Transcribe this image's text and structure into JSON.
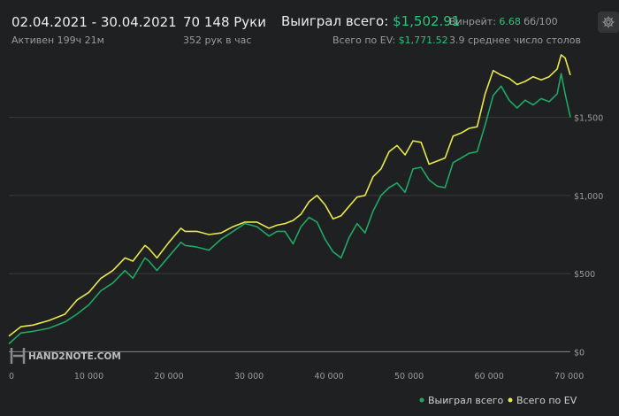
{
  "header": {
    "date_range": "02.04.2021 - 30.04.2021",
    "active": "Активен 199ч 21м",
    "hands": "70 148 Руки",
    "hands_per_hour": "352 рук в час",
    "won_label": "Выиграл всего:",
    "won_value": "$1,502.91",
    "ev_label": "Всего по EV:",
    "ev_value": "$1,771.52",
    "winrate_label": "Винрейт:",
    "winrate_value": "6.68",
    "winrate_unit": "бб/100",
    "tables": "3.9 среднее число столов"
  },
  "watermark": "HAND2NOTE.COM",
  "colors": {
    "won": "#1fa866",
    "ev": "#e8e84a",
    "accent_green": "#2ec27e",
    "background": "#1f2021"
  },
  "icons": {
    "settings": "gear-icon",
    "logo": "hand2note-logo-icon"
  },
  "chart_data": {
    "type": "line",
    "xlim": [
      0,
      70148
    ],
    "ylim": [
      -100,
      1900
    ],
    "x_ticks": [
      0,
      10000,
      20000,
      30000,
      40000,
      50000,
      60000,
      70000
    ],
    "x_tick_labels": [
      "0",
      "10 000",
      "20 000",
      "30 000",
      "40 000",
      "50 000",
      "60 000",
      "70 000"
    ],
    "y_ticks": [
      0,
      500,
      1000,
      1500
    ],
    "y_tick_labels": [
      "$0",
      "$500",
      "$1,000",
      "$1,500"
    ],
    "grid": true,
    "legend_position": "bottom-right",
    "legend": [
      "Выиграл всего",
      "Всего по EV"
    ],
    "series": [
      {
        "name": "Выиграл всего",
        "color": "#1fa866",
        "x": [
          0,
          1500,
          3000,
          5000,
          7000,
          8500,
          10000,
          11500,
          13000,
          14500,
          15500,
          17000,
          17500,
          18500,
          20000,
          21500,
          22000,
          23500,
          25000,
          26500,
          28000,
          29500,
          31000,
          32500,
          33500,
          34500,
          35500,
          36500,
          37500,
          38500,
          39500,
          40500,
          41500,
          42500,
          43500,
          44500,
          45500,
          46500,
          47500,
          48500,
          49500,
          50500,
          51500,
          52500,
          53500,
          54500,
          55500,
          56500,
          57500,
          58500,
          59500,
          60500,
          61500,
          62500,
          63500,
          64500,
          65500,
          66500,
          67500,
          68500,
          69000,
          69500,
          70148
        ],
        "y": [
          50,
          120,
          130,
          150,
          190,
          240,
          300,
          390,
          440,
          520,
          470,
          600,
          580,
          520,
          610,
          700,
          680,
          670,
          650,
          720,
          770,
          820,
          800,
          740,
          770,
          770,
          690,
          800,
          860,
          830,
          720,
          640,
          600,
          730,
          820,
          760,
          900,
          1000,
          1050,
          1080,
          1020,
          1170,
          1180,
          1100,
          1060,
          1050,
          1210,
          1240,
          1270,
          1280,
          1450,
          1640,
          1700,
          1610,
          1560,
          1610,
          1580,
          1620,
          1600,
          1650,
          1780,
          1650,
          1500
        ]
      },
      {
        "name": "Всего по EV",
        "color": "#e8e84a",
        "x": [
          0,
          1500,
          3000,
          5000,
          7000,
          8500,
          10000,
          11500,
          13000,
          14500,
          15500,
          17000,
          17500,
          18500,
          20000,
          21500,
          22000,
          23500,
          25000,
          26500,
          28000,
          29500,
          31000,
          32500,
          33500,
          34500,
          35500,
          36500,
          37500,
          38500,
          39500,
          40500,
          41500,
          42500,
          43500,
          44500,
          45500,
          46500,
          47500,
          48500,
          49500,
          50500,
          51500,
          52500,
          53500,
          54500,
          55500,
          56500,
          57500,
          58500,
          59500,
          60500,
          61500,
          62500,
          63500,
          64500,
          65500,
          66500,
          67500,
          68500,
          69000,
          69500,
          70148
        ],
        "y": [
          100,
          160,
          170,
          200,
          240,
          330,
          380,
          470,
          520,
          600,
          580,
          680,
          660,
          600,
          700,
          790,
          770,
          770,
          750,
          760,
          800,
          830,
          830,
          790,
          810,
          820,
          840,
          880,
          960,
          1000,
          940,
          850,
          870,
          930,
          990,
          1000,
          1120,
          1170,
          1280,
          1320,
          1260,
          1350,
          1340,
          1200,
          1220,
          1240,
          1380,
          1400,
          1430,
          1440,
          1650,
          1800,
          1770,
          1750,
          1710,
          1730,
          1760,
          1740,
          1760,
          1810,
          1900,
          1880,
          1770
        ]
      }
    ]
  }
}
